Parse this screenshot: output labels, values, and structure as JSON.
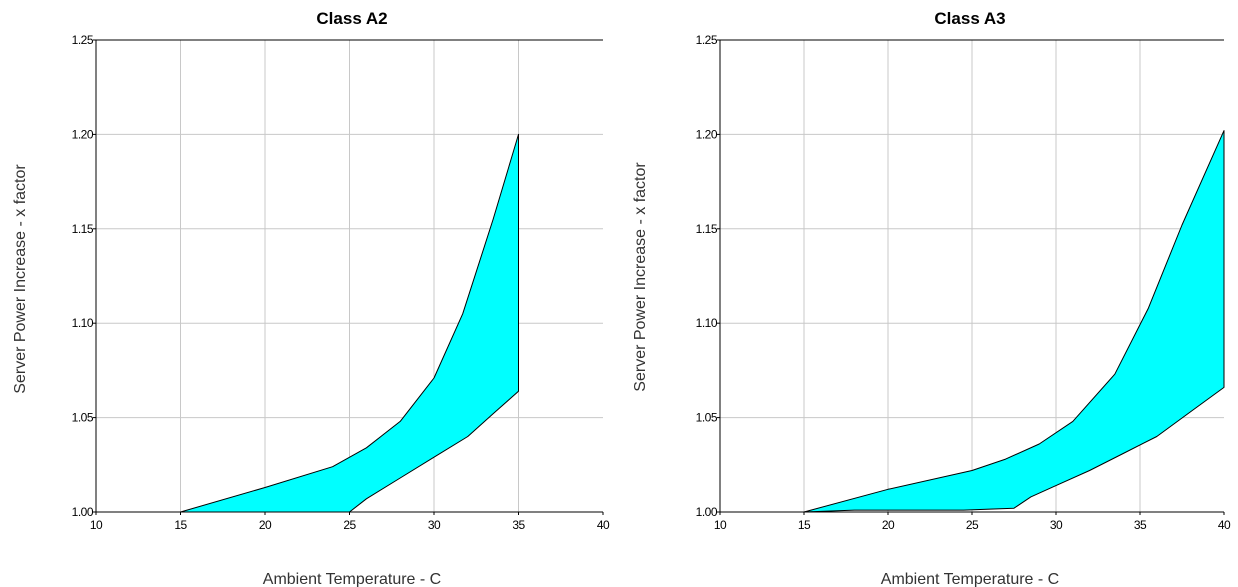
{
  "chart_data": [
    {
      "type": "area",
      "title": "Class A2",
      "xlabel": "Ambient Temperature - C",
      "ylabel": "Server Power Increase - x factor",
      "xlim": [
        10,
        40
      ],
      "ylim": [
        1.0,
        1.25
      ],
      "xticks": [
        "10",
        "15",
        "20",
        "25",
        "30",
        "35",
        "40"
      ],
      "yticks": [
        "1.00",
        "1.05",
        "1.10",
        "1.15",
        "1.20",
        "1.25"
      ],
      "grid": true,
      "series": [
        {
          "values_upper": [
            [
              15,
              1.0
            ],
            [
              20,
              1.013
            ],
            [
              24,
              1.024
            ],
            [
              26,
              1.034
            ],
            [
              28,
              1.048
            ],
            [
              30,
              1.071
            ],
            [
              31.7,
              1.105
            ],
            [
              33.5,
              1.155
            ],
            [
              35,
              1.2
            ]
          ],
          "values_lower": [
            [
              15,
              1.0
            ],
            [
              25,
              1.0
            ],
            [
              26,
              1.007
            ],
            [
              28,
              1.018
            ],
            [
              30,
              1.029
            ],
            [
              32,
              1.04
            ],
            [
              33.5,
              1.052
            ],
            [
              35,
              1.064
            ]
          ],
          "fill_color": "#00ffff"
        }
      ]
    },
    {
      "type": "area",
      "title": "Class A3",
      "xlabel": "Ambient Temperature - C",
      "ylabel": "Server Power Increase - x factor",
      "xlim": [
        10,
        40
      ],
      "ylim": [
        1.0,
        1.25
      ],
      "xticks": [
        "10",
        "15",
        "20",
        "25",
        "30",
        "35",
        "40"
      ],
      "yticks": [
        "1.00",
        "1.05",
        "1.10",
        "1.15",
        "1.20",
        "1.25"
      ],
      "grid": true,
      "series": [
        {
          "values_upper": [
            [
              15,
              1.0
            ],
            [
              20,
              1.012
            ],
            [
              25,
              1.022
            ],
            [
              27,
              1.028
            ],
            [
              29,
              1.036
            ],
            [
              31,
              1.048
            ],
            [
              33.5,
              1.073
            ],
            [
              35.5,
              1.108
            ],
            [
              37.5,
              1.152
            ],
            [
              40,
              1.202
            ]
          ],
          "values_lower": [
            [
              15,
              1.0
            ],
            [
              18,
              1.001
            ],
            [
              24.5,
              1.001
            ],
            [
              27.5,
              1.002
            ],
            [
              28.5,
              1.008
            ],
            [
              30,
              1.014
            ],
            [
              32,
              1.022
            ],
            [
              34,
              1.031
            ],
            [
              36,
              1.04
            ],
            [
              38,
              1.053
            ],
            [
              40,
              1.066
            ]
          ],
          "fill_color": "#00ffff"
        }
      ]
    }
  ]
}
